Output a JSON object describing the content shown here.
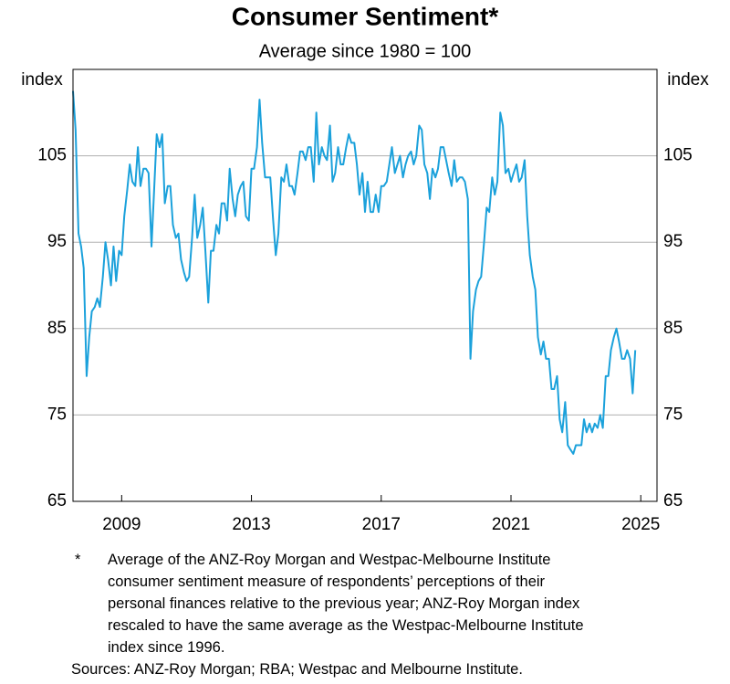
{
  "chart_data": {
    "type": "line",
    "title": "Consumer Sentiment*",
    "subtitle": "Average since 1980 = 100",
    "y_label": "index",
    "xlim": [
      2008,
      2026
    ],
    "xticks": [
      {
        "value": 2009.5,
        "label": "2009"
      },
      {
        "value": 2013.5,
        "label": "2013"
      },
      {
        "value": 2017.5,
        "label": "2017"
      },
      {
        "value": 2021.5,
        "label": "2021"
      },
      {
        "value": 2025.5,
        "label": "2025"
      }
    ],
    "ylim": [
      65,
      115
    ],
    "yticks": [
      65,
      75,
      85,
      95,
      105
    ],
    "grid": true,
    "x": [
      2008.0,
      2008.08,
      2008.17,
      2008.25,
      2008.33,
      2008.42,
      2008.5,
      2008.58,
      2008.67,
      2008.75,
      2008.83,
      2008.92,
      2009.0,
      2009.08,
      2009.17,
      2009.25,
      2009.33,
      2009.42,
      2009.5,
      2009.58,
      2009.67,
      2009.75,
      2009.83,
      2009.92,
      2010.0,
      2010.08,
      2010.17,
      2010.25,
      2010.33,
      2010.42,
      2010.5,
      2010.58,
      2010.67,
      2010.75,
      2010.83,
      2010.92,
      2011.0,
      2011.08,
      2011.17,
      2011.25,
      2011.33,
      2011.42,
      2011.5,
      2011.58,
      2011.67,
      2011.75,
      2011.83,
      2011.92,
      2012.0,
      2012.08,
      2012.17,
      2012.25,
      2012.33,
      2012.42,
      2012.5,
      2012.58,
      2012.67,
      2012.75,
      2012.83,
      2012.92,
      2013.0,
      2013.08,
      2013.17,
      2013.25,
      2013.33,
      2013.42,
      2013.5,
      2013.58,
      2013.67,
      2013.75,
      2013.83,
      2013.92,
      2014.0,
      2014.08,
      2014.17,
      2014.25,
      2014.33,
      2014.42,
      2014.5,
      2014.58,
      2014.67,
      2014.75,
      2014.83,
      2014.92,
      2015.0,
      2015.08,
      2015.17,
      2015.25,
      2015.33,
      2015.42,
      2015.5,
      2015.58,
      2015.67,
      2015.75,
      2015.83,
      2015.92,
      2016.0,
      2016.08,
      2016.17,
      2016.25,
      2016.33,
      2016.42,
      2016.5,
      2016.58,
      2016.67,
      2016.75,
      2016.83,
      2016.92,
      2017.0,
      2017.08,
      2017.17,
      2017.25,
      2017.33,
      2017.42,
      2017.5,
      2017.58,
      2017.67,
      2017.75,
      2017.83,
      2017.92,
      2018.0,
      2018.08,
      2018.17,
      2018.25,
      2018.33,
      2018.42,
      2018.5,
      2018.58,
      2018.67,
      2018.75,
      2018.83,
      2018.92,
      2019.0,
      2019.08,
      2019.17,
      2019.25,
      2019.33,
      2019.42,
      2019.5,
      2019.58,
      2019.67,
      2019.75,
      2019.83,
      2019.92,
      2020.0,
      2020.08,
      2020.17,
      2020.25,
      2020.33,
      2020.42,
      2020.5,
      2020.58,
      2020.67,
      2020.75,
      2020.83,
      2020.92,
      2021.0,
      2021.08,
      2021.17,
      2021.25,
      2021.33,
      2021.42,
      2021.5,
      2021.58,
      2021.67,
      2021.75,
      2021.83,
      2021.92,
      2022.0,
      2022.08,
      2022.17,
      2022.25,
      2022.33,
      2022.42,
      2022.5,
      2022.58,
      2022.67,
      2022.75,
      2022.83,
      2022.92,
      2023.0,
      2023.08,
      2023.17,
      2023.25,
      2023.33,
      2023.42,
      2023.5,
      2023.58,
      2023.67,
      2023.75,
      2023.83,
      2023.92,
      2024.0,
      2024.08,
      2024.17,
      2024.25,
      2024.33,
      2024.42,
      2024.5,
      2024.58,
      2024.67,
      2024.75,
      2024.83,
      2024.92,
      2025.0,
      2025.08,
      2025.17,
      2025.25,
      2025.33
    ],
    "series": [
      {
        "color": "#1ba1db",
        "values": [
          112.5,
          108,
          96,
          94.5,
          92,
          79.5,
          84,
          87,
          87.5,
          88.5,
          87.5,
          91,
          95,
          93,
          90,
          94.5,
          90.5,
          94,
          93.5,
          98,
          101,
          104,
          102,
          101.5,
          106,
          101.5,
          103.5,
          103.5,
          103,
          94.5,
          101,
          107.5,
          106,
          107.5,
          99.5,
          101.5,
          101.5,
          97,
          95.5,
          96,
          93,
          91.5,
          90.5,
          91,
          95.5,
          100.5,
          95.5,
          97,
          99,
          94,
          88,
          94,
          94,
          97,
          96,
          99.5,
          99.5,
          97.5,
          103.5,
          100,
          98,
          100.5,
          101.5,
          102,
          98,
          97.5,
          103.5,
          103.5,
          106,
          111.5,
          106.5,
          102.5,
          102.5,
          102.5,
          97.5,
          93.5,
          96,
          102.5,
          102,
          104,
          101.5,
          101.5,
          100.5,
          103,
          105.5,
          105.5,
          104.5,
          106,
          106,
          102,
          110,
          104,
          106,
          105,
          104.5,
          108.5,
          102,
          103,
          106,
          104,
          104,
          106,
          107.5,
          106.5,
          106.5,
          104,
          100.5,
          103,
          98.5,
          102,
          98.5,
          98.5,
          100.5,
          98.5,
          101.5,
          101.5,
          102,
          104,
          106,
          103,
          104,
          105,
          102.5,
          104,
          105,
          105.5,
          104,
          105,
          108.5,
          108,
          104,
          103,
          100,
          103.5,
          102.5,
          103.5,
          106,
          106,
          104.5,
          103,
          101.5,
          104.5,
          102,
          102.5,
          102.5,
          102,
          100,
          81.5,
          87,
          89.5,
          90.5,
          91,
          95,
          99,
          98.5,
          102.5,
          100.5,
          102,
          110,
          108.5,
          103,
          103.5,
          102,
          103,
          104,
          102,
          102.5,
          104.5,
          98,
          93.5,
          91,
          89.5,
          84,
          82,
          83.5,
          81.5,
          81.5,
          78,
          78,
          79.5,
          74.5,
          73,
          76.5,
          71.5,
          71,
          70.5,
          71.5,
          71.5,
          71.5,
          74.5,
          73,
          74,
          73,
          74,
          73.5,
          75,
          73.5,
          79.5,
          79.5,
          82.5,
          84,
          85,
          83.5,
          81.5,
          81.5,
          82.5,
          81.5,
          77.5,
          82.5
        ]
      }
    ]
  },
  "footnote_marker": "*",
  "footnote": [
    "Average of the ANZ-Roy Morgan and Westpac-Melbourne Institute",
    "consumer sentiment measure of respondents’ perceptions of their",
    "personal finances relative to the previous year; ANZ-Roy Morgan index",
    "rescaled to have the same average as the Westpac-Melbourne Institute",
    "index since 1996."
  ],
  "sources": "Sources: ANZ-Roy Morgan; RBA; Westpac and Melbourne Institute."
}
